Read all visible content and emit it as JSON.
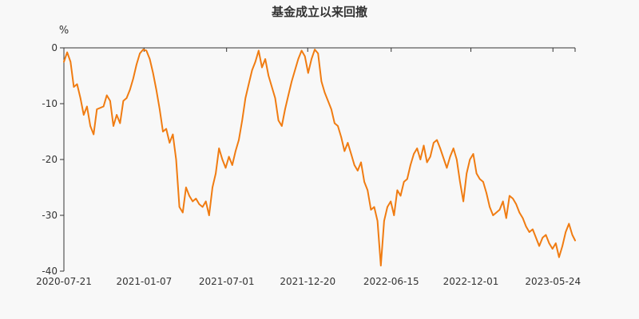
{
  "chart_data": {
    "type": "line",
    "title": "基金成立以来回撤",
    "ylabel": "%",
    "xlabel": "",
    "ylim": [
      -40,
      0
    ],
    "y_ticks": [
      0,
      -10,
      -20,
      -30,
      -40
    ],
    "y_tick_labels": [
      "0",
      "-10",
      "-20",
      "-30",
      "-40"
    ],
    "x_tick_labels": [
      "2020-07-21",
      "2021-01-07",
      "2021-07-01",
      "2021-12-20",
      "2022-06-15",
      "2022-12-01",
      "2023-05-24"
    ],
    "x_range": [
      "2020-07-21",
      "2023-07-10"
    ],
    "grid": false,
    "legend": "none",
    "colors": {
      "line": "#F07C12",
      "axis": "#333333",
      "background": "#f8f8f8"
    },
    "series": [
      {
        "x": [
          "2020-07-21",
          "2020-07-28",
          "2020-08-04",
          "2020-08-11",
          "2020-08-18",
          "2020-08-25",
          "2020-09-01",
          "2020-09-08",
          "2020-09-15",
          "2020-09-22",
          "2020-09-29",
          "2020-10-13",
          "2020-10-20",
          "2020-10-27",
          "2020-11-03",
          "2020-11-10",
          "2020-11-17",
          "2020-11-24",
          "2020-12-01",
          "2020-12-08",
          "2020-12-15",
          "2020-12-22",
          "2020-12-29",
          "2021-01-05",
          "2021-01-12",
          "2021-01-19",
          "2021-01-26",
          "2021-02-02",
          "2021-02-09",
          "2021-02-16",
          "2021-02-23",
          "2021-03-02",
          "2021-03-09",
          "2021-03-16",
          "2021-03-23",
          "2021-03-30",
          "2021-04-06",
          "2021-04-13",
          "2021-04-20",
          "2021-04-27",
          "2021-05-04",
          "2021-05-11",
          "2021-05-18",
          "2021-05-25",
          "2021-06-01",
          "2021-06-08",
          "2021-06-15",
          "2021-06-22",
          "2021-06-29",
          "2021-07-06",
          "2021-07-13",
          "2021-07-20",
          "2021-07-27",
          "2021-08-03",
          "2021-08-10",
          "2021-08-17",
          "2021-08-24",
          "2021-08-31",
          "2021-09-07",
          "2021-09-14",
          "2021-09-21",
          "2021-09-28",
          "2021-10-12",
          "2021-10-19",
          "2021-10-26",
          "2021-11-02",
          "2021-11-09",
          "2021-11-16",
          "2021-11-23",
          "2021-11-30",
          "2021-12-07",
          "2021-12-14",
          "2021-12-21",
          "2021-12-28",
          "2022-01-04",
          "2022-01-11",
          "2022-01-18",
          "2022-01-25",
          "2022-02-08",
          "2022-02-15",
          "2022-02-22",
          "2022-03-01",
          "2022-03-08",
          "2022-03-15",
          "2022-03-22",
          "2022-03-29",
          "2022-04-05",
          "2022-04-12",
          "2022-04-19",
          "2022-04-26",
          "2022-05-03",
          "2022-05-10",
          "2022-05-17",
          "2022-05-24",
          "2022-05-31",
          "2022-06-07",
          "2022-06-14",
          "2022-06-21",
          "2022-06-28",
          "2022-07-05",
          "2022-07-12",
          "2022-07-19",
          "2022-07-26",
          "2022-08-02",
          "2022-08-09",
          "2022-08-16",
          "2022-08-23",
          "2022-08-30",
          "2022-09-06",
          "2022-09-13",
          "2022-09-20",
          "2022-09-27",
          "2022-10-11",
          "2022-10-18",
          "2022-10-25",
          "2022-11-01",
          "2022-11-08",
          "2022-11-15",
          "2022-11-22",
          "2022-11-29",
          "2022-12-06",
          "2022-12-13",
          "2022-12-20",
          "2022-12-27",
          "2023-01-03",
          "2023-01-10",
          "2023-01-17",
          "2023-01-31",
          "2023-02-07",
          "2023-02-14",
          "2023-02-21",
          "2023-02-28",
          "2023-03-07",
          "2023-03-14",
          "2023-03-21",
          "2023-03-28",
          "2023-04-04",
          "2023-04-11",
          "2023-04-18",
          "2023-04-25",
          "2023-05-02",
          "2023-05-09",
          "2023-05-16",
          "2023-05-23",
          "2023-05-30",
          "2023-06-06",
          "2023-06-13",
          "2023-06-20",
          "2023-06-27",
          "2023-07-04",
          "2023-07-10"
        ],
        "values": [
          -2.5,
          -0.8,
          -2.5,
          -7.0,
          -6.5,
          -9.0,
          -12.0,
          -10.5,
          -14.0,
          -15.5,
          -11.0,
          -10.5,
          -8.5,
          -9.5,
          -14.0,
          -12.0,
          -13.5,
          -9.5,
          -9.0,
          -7.5,
          -5.5,
          -3.0,
          -1.0,
          -0.3,
          -0.5,
          -2.0,
          -4.5,
          -7.5,
          -11.0,
          -15.0,
          -14.5,
          -17.0,
          -15.5,
          -20.0,
          -28.5,
          -29.5,
          -25.0,
          -26.5,
          -27.5,
          -27.0,
          -28.0,
          -28.5,
          -27.5,
          -30.0,
          -25.0,
          -22.5,
          -18.0,
          -20.0,
          -21.5,
          -19.5,
          -21.0,
          -18.5,
          -16.5,
          -13.0,
          -9.0,
          -6.5,
          -4.0,
          -2.5,
          -0.5,
          -3.5,
          -2.0,
          -5.0,
          -9.0,
          -13.0,
          -14.0,
          -11.0,
          -8.5,
          -6.0,
          -4.0,
          -2.0,
          -0.5,
          -1.5,
          -4.5,
          -2.0,
          -0.3,
          -1.0,
          -6.0,
          -8.0,
          -11.0,
          -13.5,
          -14.0,
          -16.0,
          -18.5,
          -17.0,
          -19.0,
          -21.0,
          -22.0,
          -20.5,
          -24.0,
          -25.5,
          -29.0,
          -28.5,
          -31.0,
          -39.0,
          -31.0,
          -28.5,
          -27.5,
          -30.0,
          -25.5,
          -26.5,
          -24.0,
          -23.5,
          -21.0,
          -19.0,
          -18.0,
          -20.0,
          -17.5,
          -20.5,
          -19.5,
          -17.0,
          -16.5,
          -18.0,
          -21.5,
          -19.5,
          -18.0,
          -20.0,
          -24.0,
          -27.5,
          -22.5,
          -20.0,
          -19.0,
          -22.5,
          -23.5,
          -24.0,
          -26.0,
          -28.5,
          -30.0,
          -29.0,
          -27.5,
          -30.5,
          -26.5,
          -27.0,
          -28.0,
          -29.5,
          -30.5,
          -32.0,
          -33.0,
          -32.5,
          -34.0,
          -35.5,
          -34.0,
          -33.5,
          -35.0,
          -36.0,
          -35.0,
          -37.5,
          -35.5,
          -33.0,
          -31.5,
          -33.5,
          -34.5
        ]
      }
    ]
  }
}
